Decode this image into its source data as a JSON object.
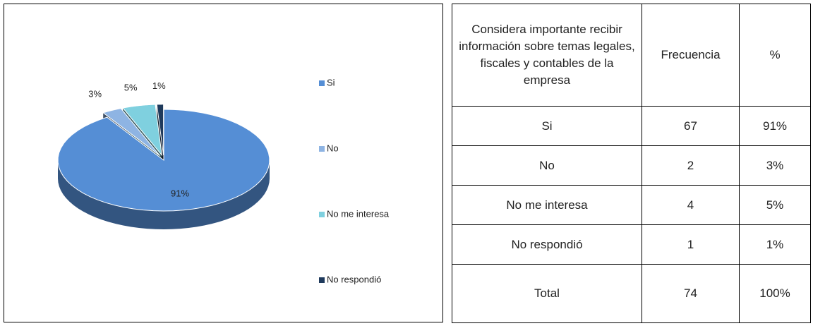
{
  "chart_data": {
    "type": "pie",
    "categories": [
      "Si",
      "No",
      "No me interesa",
      "No respondió"
    ],
    "values": [
      91,
      3,
      5,
      1
    ],
    "value_labels": [
      "91%",
      "3%",
      "5%",
      "1%"
    ],
    "colors": [
      "#558ed5",
      "#8eb4e3",
      "#7fd0df",
      "#1f3a5c"
    ],
    "legend": "right"
  },
  "table": {
    "header": [
      "Considera importante recibir información sobre temas legales, fiscales y contables de la empresa",
      "Frecuencia",
      "%"
    ],
    "rows": [
      [
        "Si",
        "67",
        "91%"
      ],
      [
        "No",
        "2",
        "3%"
      ],
      [
        "No me interesa",
        "4",
        "5%"
      ],
      [
        "No respondió",
        "1",
        "1%"
      ],
      [
        "Total",
        "74",
        "100%"
      ]
    ]
  }
}
